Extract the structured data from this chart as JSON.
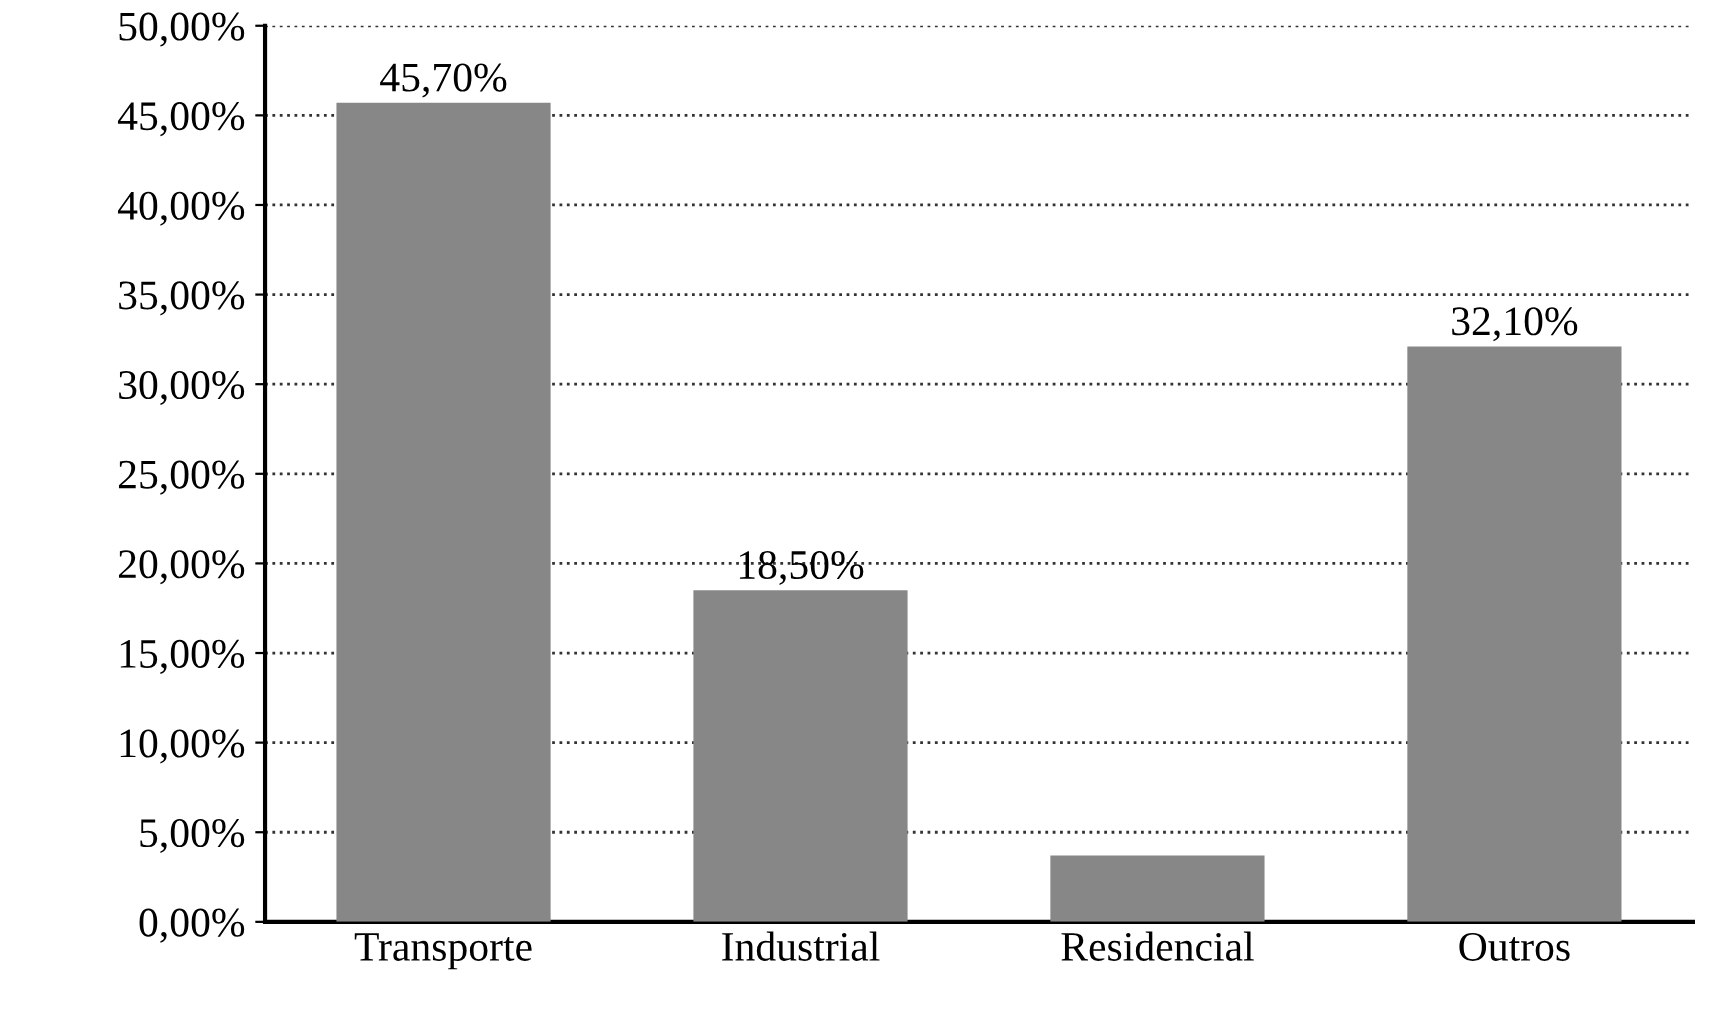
{
  "chart_data": {
    "type": "bar",
    "categories": [
      "Transporte",
      "Industrial",
      "Residencial",
      "Outros"
    ],
    "values": [
      45.7,
      18.5,
      3.7,
      32.1
    ],
    "value_labels": [
      "45,70%",
      "18,50%",
      null,
      "32,10%"
    ],
    "color": "#878787",
    "ylim": [
      0,
      50
    ],
    "yticks": [
      {
        "value": 0,
        "label": "0,00%"
      },
      {
        "value": 5,
        "label": "5,00%"
      },
      {
        "value": 10,
        "label": "10,00%"
      },
      {
        "value": 15,
        "label": "15,00%"
      },
      {
        "value": 20,
        "label": "20,00%"
      },
      {
        "value": 25,
        "label": "25,00%"
      },
      {
        "value": 30,
        "label": "30,00%"
      },
      {
        "value": 35,
        "label": "35,00%"
      },
      {
        "value": 40,
        "label": "40,00%"
      },
      {
        "value": 45,
        "label": "45,00%"
      },
      {
        "value": 50,
        "label": "50,00%"
      }
    ],
    "grid": "y",
    "line_style": "dotted"
  }
}
